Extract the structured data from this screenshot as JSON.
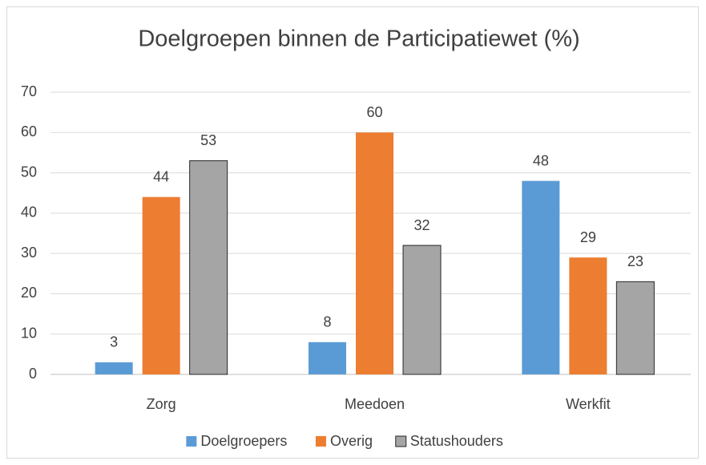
{
  "chart_data": {
    "type": "bar",
    "title": "Doelgroepen binnen de Participatiewet (%)",
    "categories": [
      "Zorg",
      "Meedoen",
      "Werkfit"
    ],
    "series": [
      {
        "name": "Doelgroepers",
        "color": "#5b9bd5",
        "values": [
          3,
          8,
          48
        ]
      },
      {
        "name": "Overig",
        "color": "#ed7d31",
        "values": [
          44,
          60,
          29
        ]
      },
      {
        "name": "Statushouders",
        "color": "#a5a5a5",
        "edgecolor": "#262626",
        "values": [
          53,
          32,
          23
        ]
      }
    ],
    "ylim": [
      0,
      70
    ],
    "yticks": [
      0,
      10,
      20,
      30,
      40,
      50,
      60,
      70
    ],
    "grid": true,
    "legend": "bottom"
  }
}
